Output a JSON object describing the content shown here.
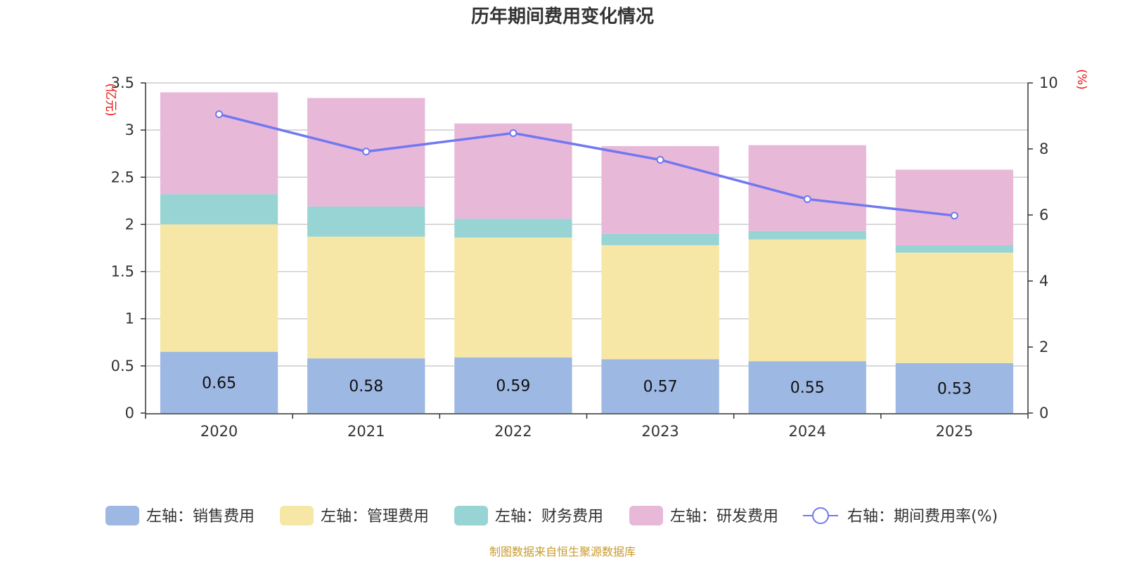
{
  "chart_data": {
    "type": "bar",
    "stacked": true,
    "title": "历年期间费用变化情况",
    "categories": [
      "2020",
      "2021",
      "2022",
      "2023",
      "2024",
      "2025"
    ],
    "left_axis": {
      "unit": "(亿元)",
      "ylim": [
        0,
        3.5
      ],
      "ticks": [
        "0",
        "0.5",
        "1",
        "1.5",
        "2",
        "2.5",
        "3",
        "3.5"
      ]
    },
    "right_axis": {
      "unit": "(%)",
      "ylim": [
        0,
        10
      ],
      "ticks": [
        "0",
        "2",
        "4",
        "6",
        "8",
        "10"
      ]
    },
    "series": [
      {
        "name": "左轴：销售费用",
        "axis": "left",
        "color": "#9db8e2",
        "values": [
          0.65,
          0.58,
          0.59,
          0.57,
          0.55,
          0.53
        ],
        "labels": [
          "0.65",
          "0.58",
          "0.59",
          "0.57",
          "0.55",
          "0.53"
        ]
      },
      {
        "name": "左轴：管理费用",
        "axis": "left",
        "color": "#f7e7a6",
        "values": [
          1.35,
          1.29,
          1.27,
          1.21,
          1.29,
          1.17
        ]
      },
      {
        "name": "左轴：财务费用",
        "axis": "left",
        "color": "#99d4d4",
        "values": [
          0.32,
          0.32,
          0.2,
          0.12,
          0.09,
          0.08
        ]
      },
      {
        "name": "左轴：研发费用",
        "axis": "left",
        "color": "#e8b8d9",
        "values": [
          1.08,
          1.15,
          1.01,
          0.93,
          0.91,
          0.8
        ]
      },
      {
        "name": "右轴：期间费用率(%)",
        "axis": "right",
        "type": "line",
        "color": "#7178f0",
        "values": [
          9.05,
          7.92,
          8.48,
          7.67,
          6.48,
          5.98
        ]
      }
    ],
    "source": "制图数据来自恒生聚源数据库",
    "colors": {
      "unit": "#e8140d",
      "source": "#c89b2b",
      "grid": "#cccccc",
      "axis": "#333333"
    }
  }
}
